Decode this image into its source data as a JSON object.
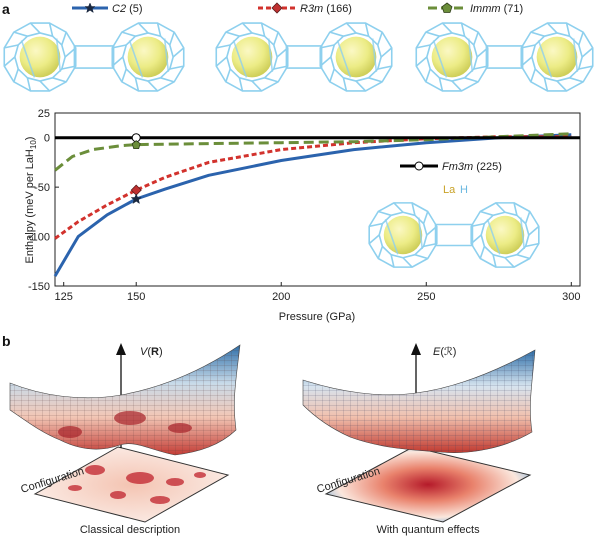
{
  "panel_a": {
    "letter": "a",
    "legend_top": [
      {
        "name": "C2",
        "suffix": " (5)",
        "color": "#2b63ad",
        "dash": "solid",
        "marker": "star"
      },
      {
        "name": "R3m",
        "suffix": " (166)",
        "color": "#d2322d",
        "dash": "short",
        "marker": "diamond"
      },
      {
        "name": "Immm",
        "suffix": " (71)",
        "color": "#6b8e3a",
        "dash": "long",
        "marker": "pentagon"
      }
    ],
    "legend_inset": {
      "name": "Fm3m",
      "suffix": " (225)",
      "color": "#000000",
      "marker": "circle"
    },
    "atom_legend": {
      "la": "La",
      "h": "H",
      "la_color": "#c9a227",
      "h_color": "#6bb8e0"
    }
  },
  "chart_data": {
    "type": "line",
    "title": "",
    "xlabel": "Pressure (GPa)",
    "ylabel": "Enthalpy (meV per LaH10)",
    "xlim": [
      122,
      303
    ],
    "ylim": [
      -150,
      25
    ],
    "xticks": [
      125,
      150,
      200,
      250,
      300
    ],
    "yticks": [
      25,
      0,
      -50,
      -100,
      -150
    ],
    "grid": false,
    "legend_position": "top and center-right",
    "series": [
      {
        "name": "C2 (5)",
        "color": "#2b63ad",
        "x": [
          122,
          130,
          140,
          150,
          160,
          175,
          200,
          225,
          250,
          275,
          300
        ],
        "y": [
          -140,
          -100,
          -78,
          -62,
          -52,
          -38,
          -23,
          -12,
          -5,
          0,
          3
        ]
      },
      {
        "name": "R3m (166)",
        "color": "#d2322d",
        "x": [
          122,
          130,
          140,
          150,
          160,
          175,
          200,
          225,
          250,
          275,
          300
        ],
        "y": [
          -102,
          -85,
          -68,
          -53,
          -40,
          -25,
          -12,
          -5,
          -1,
          1,
          1
        ]
      },
      {
        "name": "Immm (71)",
        "color": "#6b8e3a",
        "x": [
          122,
          128,
          135,
          145,
          150,
          175,
          200,
          225,
          250,
          275,
          300
        ],
        "y": [
          -33,
          -19,
          -12,
          -8,
          -7,
          -6,
          -5,
          -4,
          -2,
          1,
          4
        ]
      },
      {
        "name": "Fm3m (225)",
        "color": "#000000",
        "x": [
          122,
          303
        ],
        "y": [
          0,
          0
        ]
      }
    ],
    "markers_at_x": 150,
    "marker_values": {
      "C2 (5)": -62,
      "R3m (166)": -53,
      "Immm (71)": -7,
      "Fm3m (225)": 0
    }
  },
  "panel_b": {
    "letter": "b",
    "left": {
      "axis_label": "V(R)",
      "configuration_label": "Configuration",
      "caption": "Classical description"
    },
    "right": {
      "axis_label": "E(ℛ)",
      "configuration_label": "Configuration",
      "caption": "With quantum effects"
    }
  }
}
